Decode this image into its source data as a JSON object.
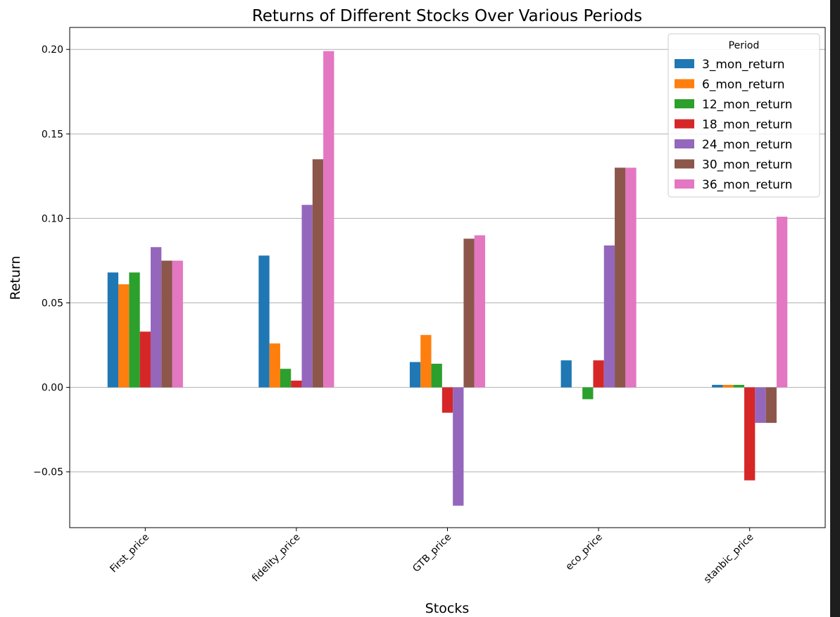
{
  "chart_data": {
    "type": "bar",
    "title": "Returns of Different Stocks Over Various Periods",
    "xlabel": "Stocks",
    "ylabel": "Return",
    "categories": [
      "First_price",
      "fidelity_price",
      "GTB_price",
      "eco_price",
      "stanbic_price"
    ],
    "ylim": [
      -0.083,
      0.213
    ],
    "yticks": [
      -0.05,
      0.0,
      0.05,
      0.1,
      0.15,
      0.2
    ],
    "ytick_labels": [
      "−0.05",
      "0.00",
      "0.05",
      "0.10",
      "0.15",
      "0.20"
    ],
    "grid": "horizontal",
    "legend": {
      "title": "Period",
      "placement": "top-right"
    },
    "series": [
      {
        "name": "3_mon_return",
        "color": "#1f77b4",
        "values": [
          0.068,
          0.078,
          0.015,
          0.016,
          0.0015
        ]
      },
      {
        "name": "6_mon_return",
        "color": "#ff7f0e",
        "values": [
          0.061,
          0.026,
          0.031,
          0.0,
          0.0015
        ]
      },
      {
        "name": "12_mon_return",
        "color": "#2ca02c",
        "values": [
          0.068,
          0.011,
          0.014,
          -0.007,
          0.0015
        ]
      },
      {
        "name": "18_mon_return",
        "color": "#d62728",
        "values": [
          0.033,
          0.004,
          -0.015,
          0.016,
          -0.055
        ]
      },
      {
        "name": "24_mon_return",
        "color": "#9467bd",
        "values": [
          0.083,
          0.108,
          -0.07,
          0.084,
          -0.021
        ]
      },
      {
        "name": "30_mon_return",
        "color": "#8c564b",
        "values": [
          0.075,
          0.135,
          0.088,
          0.13,
          -0.021
        ]
      },
      {
        "name": "36_mon_return",
        "color": "#e377c2",
        "values": [
          0.075,
          0.199,
          0.09,
          0.13,
          0.101
        ]
      }
    ]
  }
}
